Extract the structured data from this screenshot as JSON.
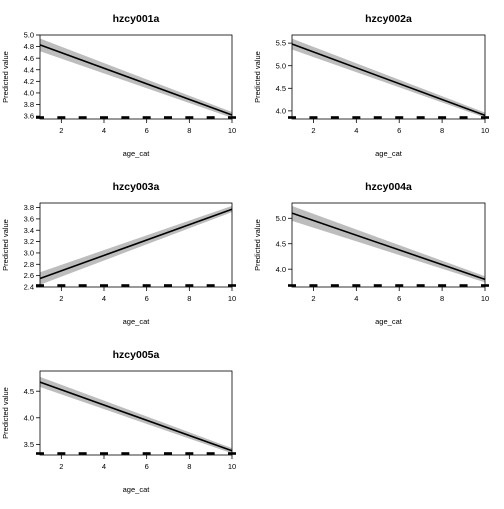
{
  "colors": {
    "band": "#bdbdbd",
    "line": "#000000",
    "rug": "#000000"
  },
  "chart_data": [
    {
      "type": "line",
      "title": "hzcy001a",
      "xlabel": "age_cat",
      "ylabel": "Predicted value",
      "xlim": [
        1,
        10
      ],
      "ylim": [
        3.55,
        5.0
      ],
      "xticks": [
        2,
        4,
        6,
        8,
        10
      ],
      "yticks": [
        3.6,
        3.8,
        4.0,
        4.2,
        4.4,
        4.6,
        4.8,
        5.0
      ],
      "ytick_labels": [
        "3.6",
        "3.8",
        "4.0",
        "4.2",
        "4.4",
        "4.6",
        "4.8",
        "5.0"
      ],
      "x": [
        1,
        10
      ],
      "y": [
        4.83,
        3.62
      ],
      "ci_low": [
        4.72,
        3.57
      ],
      "ci_high": [
        4.94,
        3.67
      ],
      "rug": [
        1,
        2,
        3,
        4,
        5,
        6,
        7,
        8,
        9,
        10
      ]
    },
    {
      "type": "line",
      "title": "hzcy002a",
      "xlabel": "age_cat",
      "ylabel": "Predicted value",
      "xlim": [
        1,
        10
      ],
      "ylim": [
        3.82,
        5.68
      ],
      "xticks": [
        2,
        4,
        6,
        8,
        10
      ],
      "yticks": [
        4.0,
        4.5,
        5.0,
        5.5
      ],
      "ytick_labels": [
        "4.0",
        "4.5",
        "5.0",
        "5.5"
      ],
      "x": [
        1,
        10
      ],
      "y": [
        5.48,
        3.9
      ],
      "ci_low": [
        5.36,
        3.85
      ],
      "ci_high": [
        5.6,
        3.96
      ],
      "rug": [
        1,
        2,
        3,
        4,
        5,
        6,
        7,
        8,
        9,
        10
      ]
    },
    {
      "type": "line",
      "title": "hzcy003a",
      "xlabel": "age_cat",
      "ylabel": "Predicted value",
      "xlim": [
        1,
        10
      ],
      "ylim": [
        2.4,
        3.88
      ],
      "xticks": [
        2,
        4,
        6,
        8,
        10
      ],
      "yticks": [
        2.4,
        2.6,
        2.8,
        3.0,
        3.2,
        3.4,
        3.6,
        3.8
      ],
      "ytick_labels": [
        "2.4",
        "2.6",
        "2.8",
        "3.0",
        "3.2",
        "3.4",
        "3.6",
        "3.8"
      ],
      "x": [
        1,
        10
      ],
      "y": [
        2.55,
        3.77
      ],
      "ci_low": [
        2.44,
        3.72
      ],
      "ci_high": [
        2.66,
        3.83
      ],
      "rug": [
        1,
        2,
        3,
        4,
        5,
        6,
        7,
        8,
        9,
        10
      ]
    },
    {
      "type": "line",
      "title": "hzcy004a",
      "xlabel": "age_cat",
      "ylabel": "Predicted value",
      "xlim": [
        1,
        10
      ],
      "ylim": [
        3.65,
        5.3
      ],
      "xticks": [
        2,
        4,
        6,
        8,
        10
      ],
      "yticks": [
        4.0,
        4.5,
        5.0
      ],
      "ytick_labels": [
        "4.0",
        "4.5",
        "5.0"
      ],
      "x": [
        1,
        10
      ],
      "y": [
        5.1,
        3.8
      ],
      "ci_low": [
        4.95,
        3.74
      ],
      "ci_high": [
        5.24,
        3.86
      ],
      "rug": [
        1,
        2,
        3,
        4,
        5,
        6,
        7,
        8,
        9,
        10
      ]
    },
    {
      "type": "line",
      "title": "hzcy005a",
      "xlabel": "age_cat",
      "ylabel": "Predicted value",
      "xlim": [
        1,
        10
      ],
      "ylim": [
        3.3,
        4.88
      ],
      "xticks": [
        2,
        4,
        6,
        8,
        10
      ],
      "yticks": [
        3.5,
        4.0,
        4.5
      ],
      "ytick_labels": [
        "3.5",
        "4.0",
        "4.5"
      ],
      "x": [
        1,
        10
      ],
      "y": [
        4.67,
        3.38
      ],
      "ci_low": [
        4.58,
        3.33
      ],
      "ci_high": [
        4.77,
        3.43
      ],
      "rug": [
        1,
        2,
        3,
        4,
        5,
        6,
        7,
        8,
        9,
        10
      ]
    }
  ]
}
